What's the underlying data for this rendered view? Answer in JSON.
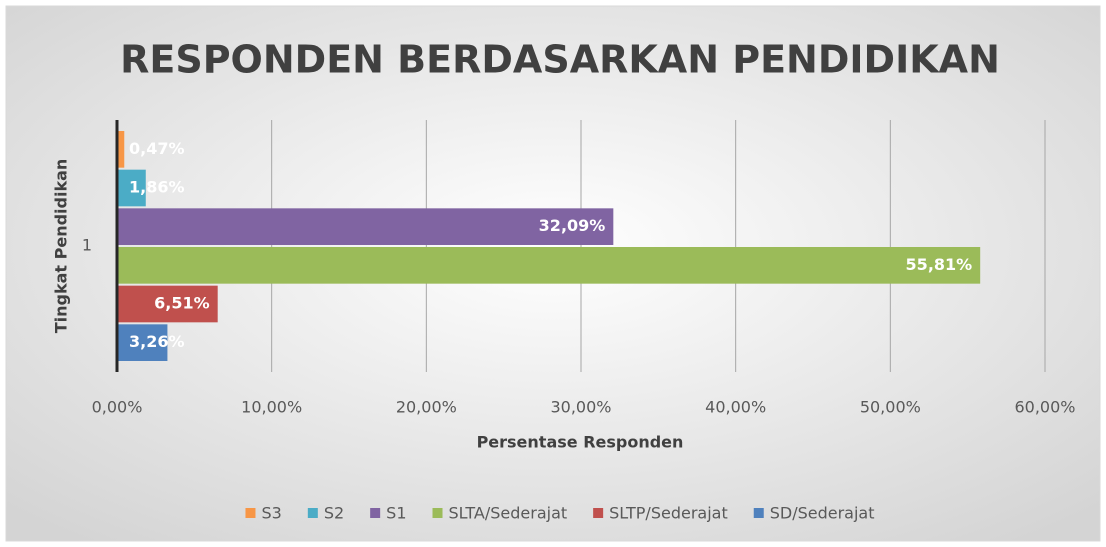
{
  "chart_data": {
    "type": "hbar",
    "title": "RESPONDEN BERDASARKAN PENDIDIKAN",
    "xlabel": "Persentase Responden",
    "ylabel": "Tingkat Pendidikan",
    "categories": [
      "1"
    ],
    "series": [
      {
        "name": "S3",
        "color": "#f79646",
        "values": [
          0.47
        ],
        "value_labels": [
          "0,47%"
        ]
      },
      {
        "name": "S2",
        "color": "#4bacc6",
        "values": [
          1.86
        ],
        "value_labels": [
          "1,86%"
        ]
      },
      {
        "name": "S1",
        "color": "#8064a2",
        "values": [
          32.09
        ],
        "value_labels": [
          "32,09%"
        ]
      },
      {
        "name": "SLTA/Sederajat",
        "color": "#9bbb59",
        "values": [
          55.81
        ],
        "value_labels": [
          "55,81%"
        ]
      },
      {
        "name": "SLTP/Sederajat",
        "color": "#c0504d",
        "values": [
          6.51
        ],
        "value_labels": [
          "6,51%"
        ]
      },
      {
        "name": "SD/Sederajat",
        "color": "#4f81bd",
        "values": [
          3.26
        ],
        "value_labels": [
          "3,26%"
        ]
      }
    ],
    "xlim": [
      0,
      60
    ],
    "xticks": [
      {
        "value": 0,
        "label": "0,00%"
      },
      {
        "value": 10,
        "label": "10,00%"
      },
      {
        "value": 20,
        "label": "20,00%"
      },
      {
        "value": 30,
        "label": "30,00%"
      },
      {
        "value": 40,
        "label": "40,00%"
      },
      {
        "value": 50,
        "label": "50,00%"
      },
      {
        "value": 60,
        "label": "60,00%"
      }
    ],
    "grid": true,
    "legend": "bottom"
  }
}
